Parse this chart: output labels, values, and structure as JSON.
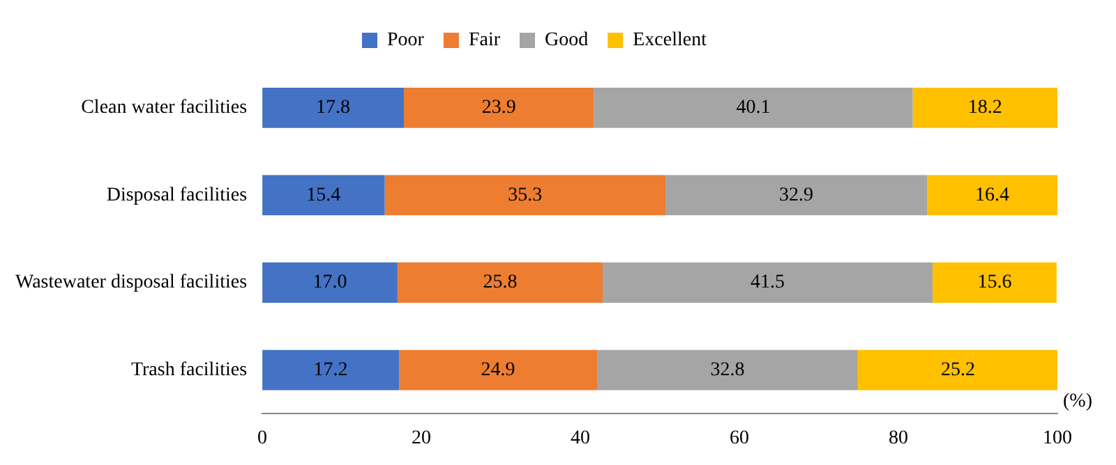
{
  "chart_data": {
    "type": "bar",
    "orientation": "horizontal",
    "stacked": true,
    "xlabel": "(%)",
    "categories": [
      "Clean water facilities",
      "Disposal facilities",
      "Wastewater disposal facilities",
      "Trash facilities"
    ],
    "series": [
      {
        "name": "Poor",
        "color": "#4472c4",
        "values": [
          17.8,
          15.4,
          17.0,
          17.2
        ],
        "value_labels": [
          "17.8",
          "15.4",
          "17.0",
          "17.2"
        ]
      },
      {
        "name": "Fair",
        "color": "#ed7d31",
        "values": [
          23.9,
          35.3,
          25.8,
          24.9
        ],
        "value_labels": [
          "23.9",
          "35.3",
          "25.8",
          "24.9"
        ]
      },
      {
        "name": "Good",
        "color": "#a5a5a5",
        "values": [
          40.1,
          32.9,
          41.5,
          32.8
        ],
        "value_labels": [
          "40.1",
          "32.9",
          "41.5",
          "32.8"
        ]
      },
      {
        "name": "Excellent",
        "color": "#ffc000",
        "values": [
          18.2,
          16.4,
          15.6,
          25.2
        ],
        "value_labels": [
          "18.2",
          "16.4",
          "15.6",
          "25.2"
        ]
      }
    ],
    "xlim": [
      0,
      100
    ],
    "xticks": [
      0,
      20,
      40,
      60,
      80,
      100
    ],
    "grid": false,
    "legend": "top"
  }
}
